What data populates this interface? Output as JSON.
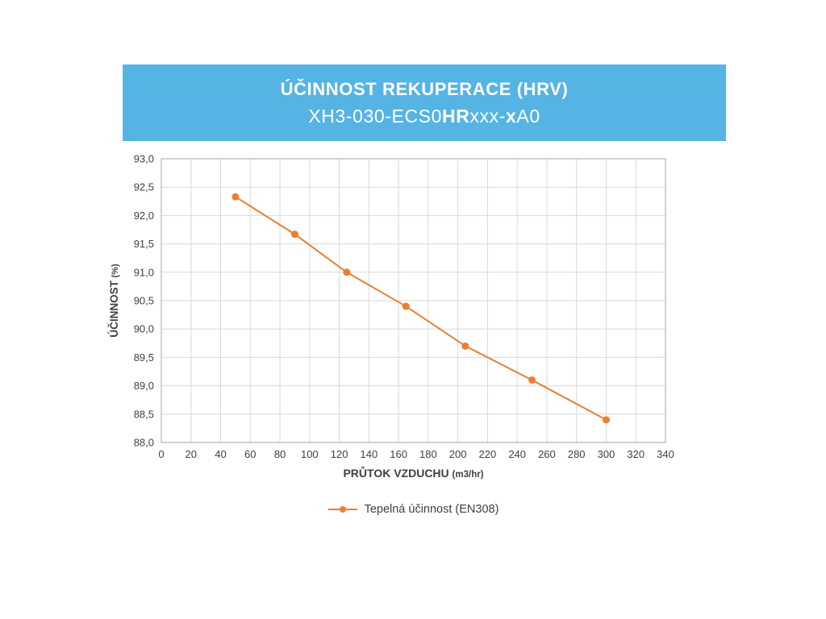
{
  "header": {
    "title": "ÚČINNOST REKUPERACE (HRV)",
    "subtitle": "XH3-030-ECS0HRxxx-xA0",
    "subtitle_parts": [
      {
        "text": "XH3-030-ECS0",
        "bold": false
      },
      {
        "text": "HR",
        "bold": true
      },
      {
        "text": "xxx-",
        "bold": false
      },
      {
        "text": "x",
        "bold": true
      },
      {
        "text": "A0",
        "bold": false
      }
    ],
    "background_color": "#56b4e4"
  },
  "chart_data": {
    "type": "line",
    "title": "",
    "xlabel": "PRŮTOK VZDUCHU",
    "xlabel_unit": "(m3/hr)",
    "ylabel": "ÚČINNOST",
    "ylabel_unit": "(%)",
    "x": [
      50,
      90,
      125,
      165,
      205,
      250,
      300
    ],
    "y": [
      92.33,
      91.67,
      91.0,
      90.4,
      89.7,
      89.1,
      88.4
    ],
    "xlim": [
      0,
      340
    ],
    "xtick_step": 20,
    "ylim": [
      88.0,
      93.0
    ],
    "ytick_step": 0.5,
    "decimal_separator": ",",
    "grid": true,
    "grid_color": "#d9d9d9",
    "border_color": "#a6a6a6",
    "text_color": "#404040",
    "line_color": "#ed7d31",
    "legend": [
      {
        "label": "Tepelná účinnost (EN308)",
        "color": "#ed7d31"
      }
    ],
    "legend_position": "bottom-center"
  }
}
